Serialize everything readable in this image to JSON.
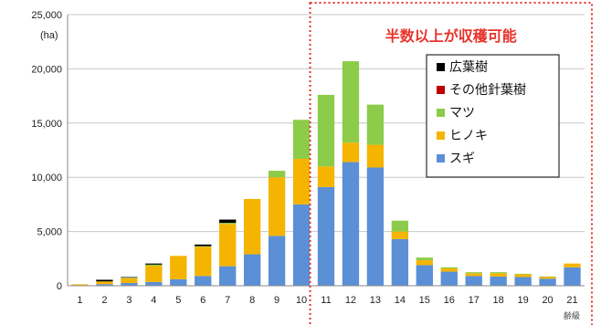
{
  "chart_data": {
    "type": "bar",
    "stacked": true,
    "categories": [
      "1",
      "2",
      "3",
      "4",
      "5",
      "6",
      "7",
      "8",
      "9",
      "10",
      "11",
      "12",
      "13",
      "14",
      "15",
      "16",
      "17",
      "18",
      "19",
      "20",
      "21"
    ],
    "series": [
      {
        "name": "スギ",
        "color": "#5B8FD6",
        "values": [
          50,
          150,
          250,
          350,
          600,
          900,
          1800,
          2900,
          4600,
          7500,
          9100,
          11400,
          10900,
          4300,
          1900,
          1300,
          900,
          850,
          800,
          650,
          1700
        ]
      },
      {
        "name": "ヒノキ",
        "color": "#F5B400",
        "values": [
          80,
          250,
          450,
          1500,
          2150,
          2700,
          3900,
          5100,
          5400,
          4200,
          1900,
          1800,
          2100,
          700,
          450,
          300,
          250,
          300,
          250,
          150,
          350
        ]
      },
      {
        "name": "マツ",
        "color": "#8DCB4A",
        "values": [
          0,
          0,
          50,
          100,
          0,
          50,
          100,
          0,
          600,
          3600,
          6600,
          7500,
          3700,
          1000,
          250,
          100,
          100,
          100,
          50,
          50,
          0
        ]
      },
      {
        "name": "その他針葉樹",
        "color": "#C00000",
        "values": [
          0,
          0,
          0,
          0,
          0,
          0,
          0,
          0,
          0,
          0,
          0,
          0,
          0,
          0,
          0,
          0,
          0,
          0,
          0,
          0,
          0
        ]
      },
      {
        "name": "広葉樹",
        "color": "#000000",
        "values": [
          0,
          150,
          50,
          100,
          0,
          150,
          300,
          0,
          0,
          0,
          0,
          0,
          0,
          0,
          0,
          0,
          0,
          0,
          0,
          0,
          0
        ]
      }
    ],
    "legend_order": [
      "広葉樹",
      "その他針葉樹",
      "マツ",
      "ヒノキ",
      "スギ"
    ],
    "legend_position": "top-right",
    "ylim": [
      0,
      25000
    ],
    "yticks": [
      0,
      5000,
      10000,
      15000,
      20000,
      25000
    ],
    "ytick_labels": [
      "0",
      "5,000",
      "10,000",
      "15,000",
      "20,000",
      "25,000"
    ],
    "ylabel": "(ha)",
    "xlabel": "齢級",
    "grid": true,
    "annotation": {
      "text": "半数以上が収穫可能",
      "color": "#E8332B",
      "from_category": "11",
      "to_category": "21"
    }
  }
}
